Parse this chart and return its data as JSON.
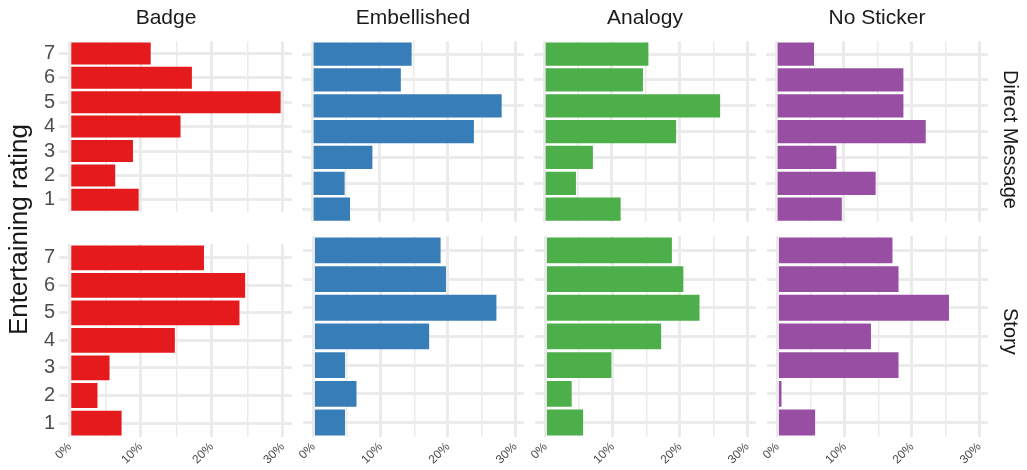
{
  "chart_data": [
    {
      "type": "bar",
      "orientation": "horizontal",
      "title": "Badge",
      "ylabel": "Entertaining rating",
      "categories": [
        "7",
        "6",
        "5",
        "4",
        "3",
        "2",
        "1"
      ],
      "values": [
        11.4,
        17.2,
        29.7,
        15.6,
        8.9,
        6.4,
        9.7
      ],
      "color": "#e41a1c",
      "xlim": [
        -1.5,
        31.3
      ],
      "xticks": [
        {
          "value": 0,
          "label": null
        },
        {
          "value": 5,
          "label": null
        },
        {
          "value": 10,
          "label": null
        },
        {
          "value": 15,
          "label": null
        },
        {
          "value": 20,
          "label": null
        },
        {
          "value": 25,
          "label": null
        },
        {
          "value": 30,
          "label": null
        }
      ],
      "grid": true,
      "tick_labels": "y"
    },
    {
      "type": "bar",
      "orientation": "horizontal",
      "title": "Embellished",
      "categories": [
        "7",
        "6",
        "5",
        "4",
        "3",
        "2",
        "1"
      ],
      "values": [
        14.7,
        13.1,
        28.0,
        23.9,
        8.9,
        4.8,
        5.6
      ],
      "color": "#377eb8",
      "xlim": [
        -1.5,
        31.3
      ],
      "xticks": [
        {
          "value": 0,
          "label": null
        },
        {
          "value": 5,
          "label": null
        },
        {
          "value": 10,
          "label": null
        },
        {
          "value": 15,
          "label": null
        },
        {
          "value": 20,
          "label": null
        },
        {
          "value": 25,
          "label": null
        },
        {
          "value": 30,
          "label": null
        }
      ],
      "grid": true,
      "tick_labels": false
    },
    {
      "type": "bar",
      "orientation": "horizontal",
      "title": "Analogy",
      "categories": [
        "7",
        "6",
        "5",
        "4",
        "3",
        "2",
        "1"
      ],
      "values": [
        15.4,
        14.6,
        26.0,
        19.5,
        7.2,
        4.7,
        11.3
      ],
      "color": "#4daf4a",
      "xlim": [
        -1.5,
        31.3
      ],
      "xticks": [
        {
          "value": 0,
          "label": null
        },
        {
          "value": 5,
          "label": null
        },
        {
          "value": 10,
          "label": null
        },
        {
          "value": 15,
          "label": null
        },
        {
          "value": 20,
          "label": null
        },
        {
          "value": 25,
          "label": null
        },
        {
          "value": 30,
          "label": null
        }
      ],
      "grid": true,
      "tick_labels": false
    },
    {
      "type": "bar",
      "orientation": "horizontal",
      "title": "No Sticker",
      "y2label": "Direct Message",
      "categories": [
        "7",
        "6",
        "5",
        "4",
        "3",
        "2",
        "1"
      ],
      "values": [
        5.6,
        18.8,
        18.8,
        22.1,
        8.9,
        14.7,
        9.7
      ],
      "color": "#984ea3",
      "xlim": [
        -1.5,
        31.3
      ],
      "xticks": [
        {
          "value": 0,
          "label": null
        },
        {
          "value": 5,
          "label": null
        },
        {
          "value": 10,
          "label": null
        },
        {
          "value": 15,
          "label": null
        },
        {
          "value": 20,
          "label": null
        },
        {
          "value": 25,
          "label": null
        },
        {
          "value": 30,
          "label": null
        }
      ],
      "grid": true,
      "tick_labels": false
    },
    {
      "type": "bar",
      "orientation": "horizontal",
      "categories": [
        "7",
        "6",
        "5",
        "4",
        "3",
        "2",
        "1"
      ],
      "values": [
        18.9,
        24.7,
        23.9,
        14.8,
        5.6,
        3.9,
        7.3
      ],
      "color": "#e41a1c",
      "xlim": [
        -1.5,
        31.3
      ],
      "xticks": [
        {
          "value": 0,
          "label": "0%"
        },
        {
          "value": 5,
          "label": null
        },
        {
          "value": 10,
          "label": "10%"
        },
        {
          "value": 15,
          "label": null
        },
        {
          "value": 20,
          "label": "20%"
        },
        {
          "value": 25,
          "label": null
        },
        {
          "value": 30,
          "label": "30%"
        }
      ],
      "grid": true
    },
    {
      "type": "bar",
      "orientation": "horizontal",
      "categories": [
        "7",
        "6",
        "5",
        "4",
        "3",
        "2",
        "1"
      ],
      "values": [
        18.9,
        19.7,
        27.2,
        17.2,
        4.7,
        6.4,
        4.7
      ],
      "color": "#377eb8",
      "xlim": [
        -1.5,
        31.3
      ],
      "xticks": [
        {
          "value": 0,
          "label": "0%"
        },
        {
          "value": 5,
          "label": null
        },
        {
          "value": 10,
          "label": "10%"
        },
        {
          "value": 15,
          "label": null
        },
        {
          "value": 20,
          "label": "20%"
        },
        {
          "value": 25,
          "label": null
        },
        {
          "value": 30,
          "label": "30%"
        }
      ],
      "grid": true,
      "tick_labels": "x"
    },
    {
      "type": "bar",
      "orientation": "horizontal",
      "categories": [
        "7",
        "6",
        "5",
        "4",
        "3",
        "2",
        "1"
      ],
      "values": [
        18.8,
        20.5,
        22.9,
        17.2,
        9.8,
        3.9,
        5.6
      ],
      "color": "#4daf4a",
      "xlim": [
        -1.5,
        31.3
      ],
      "xticks": [
        {
          "value": 0,
          "label": "0%"
        },
        {
          "value": 5,
          "label": null
        },
        {
          "value": 10,
          "label": "10%"
        },
        {
          "value": 15,
          "label": null
        },
        {
          "value": 20,
          "label": "20%"
        },
        {
          "value": 25,
          "label": null
        },
        {
          "value": 30,
          "label": "30%"
        }
      ],
      "grid": true,
      "tick_labels": "x"
    },
    {
      "type": "bar",
      "orientation": "horizontal",
      "y2label": "Story",
      "categories": [
        "7",
        "6",
        "5",
        "4",
        "3",
        "2",
        "1"
      ],
      "values": [
        17.1,
        18.0,
        25.5,
        13.9,
        18.0,
        0.6,
        5.6
      ],
      "color": "#984ea3",
      "xlim": [
        -1.5,
        31.3
      ],
      "xticks": [
        {
          "value": 0,
          "label": "0%"
        },
        {
          "value": 5,
          "label": null
        },
        {
          "value": 10,
          "label": "10%"
        },
        {
          "value": 15,
          "label": null
        },
        {
          "value": 20,
          "label": "20%"
        },
        {
          "value": 25,
          "label": null
        },
        {
          "value": 30,
          "label": "30%"
        }
      ],
      "grid": true,
      "tick_labels": "x"
    }
  ]
}
